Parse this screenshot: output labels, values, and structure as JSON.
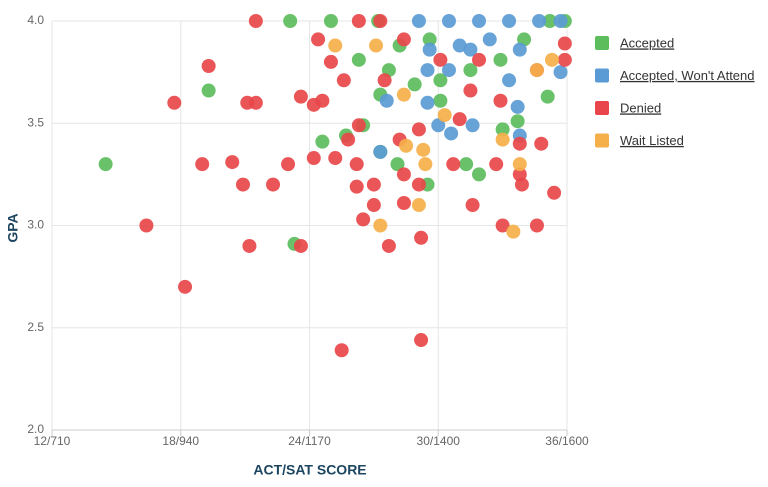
{
  "chart_data": {
    "type": "scatter",
    "x_label": "ACT/SAT SCORE",
    "y_label": "GPA",
    "xlim": [
      12,
      36
    ],
    "ylim": [
      2,
      4
    ],
    "xticks": [
      {
        "value": 12,
        "label": "12/710"
      },
      {
        "value": 18,
        "label": "18/940"
      },
      {
        "value": 24,
        "label": "24/1170"
      },
      {
        "value": 30,
        "label": "30/1400"
      },
      {
        "value": 36,
        "label": "36/1600"
      }
    ],
    "yticks": [
      {
        "value": 2,
        "label": "2.0"
      },
      2.5,
      {
        "value": 3,
        "label": "3.0"
      },
      3.5,
      {
        "value": 4,
        "label": "4.0"
      }
    ],
    "grid": true,
    "legend": "right",
    "series": [
      {
        "name": "Accepted",
        "color": "#5cbd5c",
        "x": [
          14.5,
          19.3,
          23.1,
          25.0,
          23.3,
          24.6,
          25.7,
          26.5,
          27.3,
          28.1,
          29.5,
          31.3,
          31.9,
          33.0,
          33.7,
          35.1,
          27.2,
          28.2,
          29.6,
          26.3,
          27.7,
          30.1,
          31.5,
          32.9,
          34.0,
          35.2,
          35.9,
          30.1,
          27.3,
          28.9
        ],
        "values": [
          3.3,
          3.66,
          4.0,
          4.0,
          2.91,
          3.41,
          3.44,
          3.49,
          3.36,
          3.3,
          3.2,
          3.3,
          3.25,
          3.47,
          3.51,
          3.63,
          4.0,
          3.88,
          3.91,
          3.81,
          3.76,
          3.71,
          3.76,
          3.81,
          3.91,
          4.0,
          4.0,
          3.61,
          3.64,
          3.69
        ]
      },
      {
        "name": "Accepted, Won't Attend",
        "color": "#5b9bd5",
        "x": [
          29.1,
          30.5,
          31.9,
          33.3,
          34.7,
          35.7,
          29.6,
          31.0,
          32.4,
          33.8,
          30.5,
          33.3,
          35.7,
          27.6,
          29.5,
          30.0,
          30.6,
          31.6,
          33.7,
          33.8,
          27.3,
          29.5,
          31.5
        ],
        "values": [
          4.0,
          4.0,
          4.0,
          4.0,
          4.0,
          4.0,
          3.86,
          3.88,
          3.91,
          3.86,
          3.76,
          3.71,
          3.75,
          3.61,
          3.6,
          3.49,
          3.45,
          3.49,
          3.58,
          3.44,
          3.36,
          3.76,
          3.86
        ]
      },
      {
        "name": "Denied",
        "color": "#e8464a",
        "x": [
          21.5,
          17.7,
          19.3,
          16.4,
          18.2,
          19.0,
          20.4,
          20.9,
          21.2,
          21.1,
          21.5,
          22.3,
          23.0,
          23.6,
          23.6,
          24.2,
          24.4,
          24.2,
          25.2,
          25.5,
          24.6,
          25.0,
          25.6,
          26.2,
          26.2,
          26.5,
          27.0,
          27.0,
          27.7,
          28.4,
          28.4,
          29.2,
          29.2,
          29.1,
          30.7,
          31.6,
          32.7,
          33.0,
          33.8,
          33.9,
          34.6,
          34.8,
          35.4,
          35.9,
          35.9,
          26.3,
          27.3,
          28.4,
          30.1,
          31.5,
          32.9,
          34.6,
          27.5,
          26.3,
          29.1,
          31.0,
          25.8,
          28.2,
          33.8,
          31.9
        ],
        "values": [
          4.0,
          3.6,
          3.78,
          3.0,
          2.7,
          3.3,
          3.31,
          3.2,
          2.9,
          3.6,
          3.6,
          3.2,
          3.3,
          3.63,
          2.9,
          3.59,
          3.91,
          3.33,
          3.33,
          2.39,
          3.61,
          3.8,
          3.71,
          3.3,
          3.19,
          3.03,
          3.2,
          3.1,
          2.9,
          3.11,
          3.25,
          2.44,
          2.94,
          3.2,
          3.3,
          3.1,
          3.3,
          3.0,
          3.25,
          3.2,
          3.0,
          3.4,
          3.16,
          3.89,
          3.81,
          4.0,
          4.0,
          3.91,
          3.81,
          3.66,
          3.61,
          3.76,
          3.71,
          3.49,
          3.47,
          3.52,
          3.42,
          3.42,
          3.4,
          3.81
        ]
      },
      {
        "name": "Wait Listed",
        "color": "#f5b04a",
        "x": [
          25.2,
          27.1,
          28.4,
          28.5,
          29.1,
          29.4,
          27.3,
          29.3,
          33.0,
          33.5,
          33.8,
          34.6,
          35.3,
          30.3
        ],
        "values": [
          3.88,
          3.88,
          3.64,
          3.39,
          3.1,
          3.3,
          3.0,
          3.37,
          3.42,
          2.97,
          3.3,
          3.76,
          3.81,
          3.54
        ]
      }
    ]
  }
}
